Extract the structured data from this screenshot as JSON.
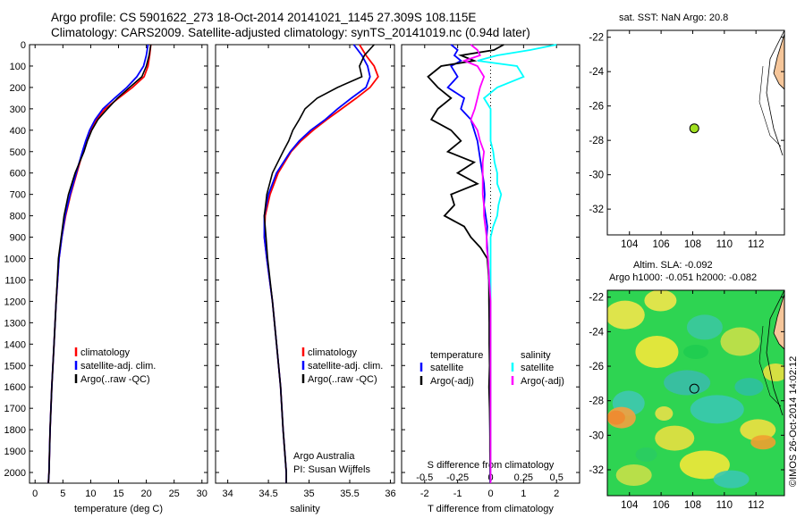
{
  "header": {
    "title_line1": "Argo profile: CS 5901622_273 18-Oct-2014 20141021_1145 27.309S 108.115E",
    "title_line2": "Climatology: CARS2009. Satellite-adjusted climatology: synTS_20141019.nc (0.94d later)"
  },
  "colors": {
    "climatology": "#ff0000",
    "satellite": "#0000ff",
    "argo": "#000000",
    "salinity_satellite": "#00ffff",
    "salinity_argo": "#ff00ff",
    "float_marker": "#a0e020",
    "land": "#f6c69a"
  },
  "temperature_panel": {
    "xlabel": "temperature (deg C)",
    "xticks": [
      "0",
      "5",
      "10",
      "15",
      "20",
      "25",
      "30"
    ],
    "legend": [
      "climatology",
      "satellite-adj. clim.",
      "Argo(..raw -QC)"
    ]
  },
  "salinity_panel": {
    "xlabel": "salinity",
    "xticks": [
      "34",
      "34.5",
      "35",
      "35.5",
      "36"
    ],
    "legend": [
      "climatology",
      "satellite-adj. clim.",
      "Argo(..raw -QC)"
    ],
    "note_line1": "Argo Australia",
    "note_line2": "PI: Susan Wijffels"
  },
  "diff_panel": {
    "xlabel": "T difference from climatology",
    "s_axis_label": "S difference from climatology",
    "xticks": [
      "-2",
      "-1",
      "0",
      "1",
      "2"
    ],
    "s_ticks": [
      "-0.5",
      "-0.25",
      "0",
      "0.25",
      "0.5"
    ],
    "legend_temp_heading": "temperature",
    "legend_sal_heading": "salinity",
    "legend_temp": [
      "satellite",
      "Argo(-adj)"
    ],
    "legend_sal": [
      "satellite",
      "Argo(-adj)"
    ]
  },
  "depth_axis": {
    "ticks": [
      "0",
      "100",
      "200",
      "300",
      "400",
      "500",
      "600",
      "700",
      "800",
      "900",
      "1000",
      "1100",
      "1200",
      "1300",
      "1400",
      "1500",
      "1600",
      "1700",
      "1800",
      "1900",
      "2000"
    ]
  },
  "map_sst": {
    "title": "sat. SST: NaN Argo: 20.8",
    "xticks": [
      "104",
      "106",
      "108",
      "110",
      "112"
    ],
    "yticks": [
      "-22",
      "-24",
      "-26",
      "-28",
      "-30",
      "-32"
    ]
  },
  "map_sla": {
    "title_line1": "Altim. SLA: -0.092",
    "title_line2": "Argo h1000: -0.051 h2000: -0.082",
    "xticks": [
      "104",
      "106",
      "108",
      "110",
      "112"
    ],
    "yticks": [
      "-22",
      "-24",
      "-26",
      "-28",
      "-30",
      "-32"
    ]
  },
  "footer": {
    "stamp": "©IMOS 26-Oct-2014 14:02:12"
  },
  "chart_data": [
    {
      "type": "line",
      "title": "",
      "xlabel": "temperature (deg C)",
      "ylabel": "",
      "xlim": [
        -1,
        31
      ],
      "ylim": [
        2050,
        0
      ],
      "depth": [
        0,
        50,
        100,
        150,
        200,
        250,
        300,
        350,
        400,
        450,
        500,
        600,
        700,
        800,
        900,
        1000,
        1200,
        1400,
        1600,
        1800,
        2000,
        2050
      ],
      "series": [
        {
          "name": "climatology",
          "values": [
            20.8,
            20.6,
            20.3,
            19.6,
            17.5,
            15.0,
            12.6,
            11.0,
            10.0,
            9.2,
            8.6,
            7.5,
            6.4,
            5.5,
            4.8,
            4.3,
            3.8,
            3.4,
            3.0,
            2.7,
            2.5,
            2.4
          ]
        },
        {
          "name": "satellite-adj. clim.",
          "values": [
            20.3,
            20.0,
            19.5,
            18.3,
            16.5,
            14.3,
            12.2,
            10.8,
            9.8,
            9.1,
            8.5,
            7.4,
            6.3,
            5.4,
            4.8,
            4.3,
            3.8,
            3.4,
            3.0,
            2.7,
            2.5,
            2.4
          ]
        },
        {
          "name": "Argo(..raw -QC)",
          "values": [
            20.8,
            20.5,
            20.0,
            19.2,
            17.0,
            14.8,
            13.0,
            11.3,
            10.2,
            9.4,
            8.8,
            7.2,
            6.0,
            5.2,
            4.7,
            4.2,
            3.8,
            3.4,
            3.0,
            2.7,
            2.5,
            2.4
          ]
        }
      ]
    },
    {
      "type": "line",
      "title": "",
      "xlabel": "salinity",
      "ylabel": "",
      "xlim": [
        33.85,
        36.05
      ],
      "ylim": [
        2050,
        0
      ],
      "depth": [
        0,
        50,
        100,
        150,
        200,
        250,
        300,
        350,
        400,
        450,
        500,
        600,
        700,
        800,
        900,
        1000,
        1200,
        1400,
        1600,
        1800,
        2000,
        2050
      ],
      "series": [
        {
          "name": "climatology",
          "values": [
            35.62,
            35.7,
            35.8,
            35.85,
            35.75,
            35.58,
            35.4,
            35.22,
            35.05,
            34.9,
            34.78,
            34.62,
            34.52,
            34.46,
            34.45,
            34.48,
            34.55,
            34.6,
            34.65,
            34.68,
            34.72,
            34.72
          ]
        },
        {
          "name": "satellite-adj. clim.",
          "values": [
            35.55,
            35.65,
            35.72,
            35.75,
            35.7,
            35.52,
            35.35,
            35.2,
            35.02,
            34.88,
            34.77,
            34.6,
            34.5,
            34.45,
            34.45,
            34.48,
            34.55,
            34.6,
            34.65,
            34.68,
            34.72,
            34.72
          ]
        },
        {
          "name": "Argo(..raw -QC)",
          "values": [
            35.8,
            35.68,
            35.62,
            35.65,
            35.35,
            35.1,
            34.95,
            34.88,
            34.8,
            34.75,
            34.68,
            34.55,
            34.48,
            34.45,
            34.47,
            34.49,
            34.55,
            34.6,
            34.65,
            34.68,
            34.72,
            34.72
          ]
        }
      ]
    },
    {
      "type": "line",
      "title": "",
      "xlabel": "T difference from climatology",
      "ylabel": "",
      "xlim": [
        -2.7,
        2.7
      ],
      "s_xlim": [
        -0.675,
        0.675
      ],
      "ylim": [
        2050,
        0
      ],
      "depth": [
        0,
        25,
        50,
        75,
        100,
        150,
        200,
        250,
        300,
        350,
        400,
        450,
        500,
        550,
        600,
        650,
        700,
        750,
        800,
        850,
        900,
        950,
        1000,
        1100,
        1200,
        1300,
        1400,
        1500,
        1600,
        1700,
        1800,
        1900,
        2000,
        2050
      ],
      "series": [
        {
          "name": "temperature satellite",
          "values": [
            -1.2,
            -1.0,
            -1.1,
            -0.9,
            -1.2,
            -1.0,
            -1.3,
            -0.8,
            -0.9,
            -0.6,
            -0.5,
            -0.4,
            -0.35,
            -0.3,
            -0.25,
            -0.2,
            -0.18,
            -0.2,
            -0.15,
            -0.1,
            -0.12,
            -0.1,
            -0.08,
            -0.05,
            -0.04,
            -0.03,
            -0.03,
            -0.02,
            -0.02,
            -0.02,
            -0.02,
            -0.01,
            -0.01,
            -0.01
          ]
        },
        {
          "name": "temperature Argo(-adj)",
          "values": [
            0.4,
            0.1,
            -0.9,
            -0.5,
            -1.5,
            -1.9,
            -1.6,
            -1.2,
            -1.6,
            -1.8,
            -1.2,
            -0.9,
            -1.3,
            -0.5,
            -1.0,
            -0.4,
            -1.2,
            -1.1,
            -1.4,
            -0.8,
            -0.6,
            -0.3,
            -0.1,
            -0.05,
            -0.05,
            -0.04,
            -0.04,
            -0.03,
            -0.05,
            -0.03,
            -0.02,
            -0.02,
            -0.01,
            -0.01
          ]
        },
        {
          "name": "salinity satellite",
          "values": [
            0.5,
            0.3,
            0.05,
            -0.1,
            0.2,
            0.25,
            0.05,
            -0.05,
            0.0,
            0.0,
            0.0,
            0.0,
            0.02,
            0.03,
            0.05,
            0.05,
            0.08,
            0.06,
            0.05,
            0.02,
            0.0,
            0.0,
            0.0,
            0.0,
            0.0,
            0.0,
            0.0,
            0.0,
            0.0,
            0.0,
            0.0,
            0.0,
            0.0,
            0.0
          ]
        },
        {
          "name": "salinity Argo(-adj)",
          "values": [
            -0.15,
            -0.1,
            -0.08,
            -0.2,
            -0.1,
            -0.05,
            -0.08,
            -0.1,
            -0.12,
            -0.15,
            -0.1,
            -0.08,
            -0.05,
            -0.06,
            -0.06,
            -0.06,
            -0.06,
            -0.05,
            -0.05,
            -0.04,
            -0.03,
            -0.03,
            -0.02,
            -0.01,
            0.0,
            0.0,
            0.0,
            0.0,
            0.0,
            0.0,
            0.0,
            0.0,
            0.0,
            0.0
          ]
        }
      ]
    },
    {
      "type": "scatter",
      "title": "sat. SST: NaN Argo: 20.8",
      "xlim": [
        102.6,
        113.8
      ],
      "ylim": [
        -33.5,
        -21.6
      ],
      "points": [
        {
          "x": 108.1,
          "y": -27.3
        }
      ]
    },
    {
      "type": "heatmap",
      "title": "Altim. SLA: -0.092",
      "xlim": [
        102.6,
        113.8
      ],
      "ylim": [
        -33.5,
        -21.6
      ],
      "points": [
        {
          "x": 108.1,
          "y": -27.3
        }
      ]
    }
  ]
}
